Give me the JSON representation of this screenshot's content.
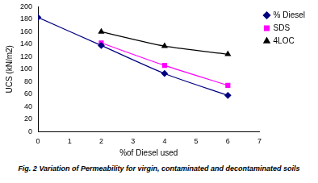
{
  "chart_data": {
    "type": "line",
    "x_label": "%of Diesel used",
    "y_label": "UCS (kN/m2)",
    "x": [
      0,
      2,
      4,
      6
    ],
    "series": [
      {
        "name": "% Diesel",
        "color": "#000080",
        "marker": "diamond",
        "values": [
          183,
          138,
          93,
          58
        ]
      },
      {
        "name": "SDS",
        "color": "#ff00ff",
        "marker": "square",
        "values": [
          null,
          142,
          106,
          74
        ]
      },
      {
        "name": "4LOC",
        "color": "#000000",
        "marker": "triangle",
        "values": [
          null,
          160,
          137,
          124
        ]
      }
    ],
    "xlim": [
      0,
      7
    ],
    "xticks": [
      0,
      1,
      2,
      3,
      4,
      5,
      6,
      7
    ],
    "ylim": [
      0,
      200
    ],
    "yticks": [
      0,
      20,
      40,
      60,
      80,
      100,
      120,
      140,
      160,
      180,
      200
    ],
    "grid": false,
    "legend": "upper right"
  },
  "caption": "Fig. 2 Variation of Permeability for virgin, contaminated and decontaminated soils"
}
